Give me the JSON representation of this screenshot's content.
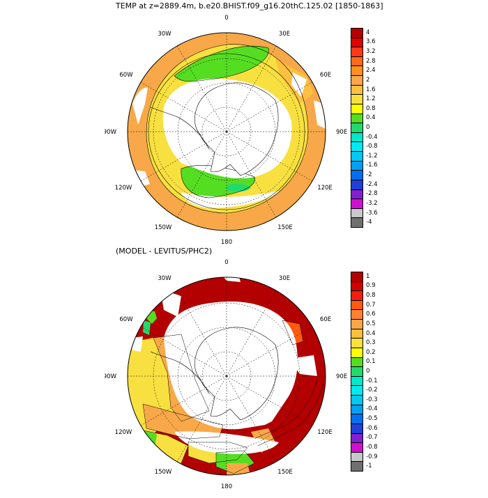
{
  "panel1": {
    "title": "TEMP at z=2889.4m, b.e20.BHIST.f09_g16.20thC.125.02 [1850-1863]",
    "longitude_labels": [
      "0",
      "30E",
      "60E",
      "90E",
      "120E",
      "150E",
      "180",
      "150W",
      "120W",
      "90W",
      "60W",
      "30W"
    ],
    "colorbar": {
      "labels": [
        "4",
        "3.6",
        "3.2",
        "2.8",
        "2.4",
        "2",
        "1.6",
        "1.2",
        "0.8",
        "0.4",
        "0",
        "-0.4",
        "-0.8",
        "-1.2",
        "-1.6",
        "-2",
        "-2.4",
        "-2.8",
        "-3.2",
        "-3.6",
        "-4"
      ],
      "colors": [
        "#b30000",
        "#e00000",
        "#ff3a1a",
        "#ff6a1a",
        "#ff9020",
        "#f8a848",
        "#fcc040",
        "#f8e040",
        "#ffff00",
        "#55dd22",
        "#22d96e",
        "#00e8c8",
        "#00e8f0",
        "#00c8f0",
        "#00a0f0",
        "#0070f0",
        "#2040d8",
        "#8020d0",
        "#d010d0",
        "#c8c8c8",
        "#707070"
      ]
    }
  },
  "panel2": {
    "title": "(MODEL - LEVITUS/PHC2)",
    "longitude_labels": [
      "0",
      "30E",
      "60E",
      "90E",
      "120E",
      "150E",
      "180",
      "150W",
      "120W",
      "90W",
      "60W",
      "30W"
    ],
    "colorbar": {
      "labels": [
        "1",
        "0.9",
        "0.8",
        "0.7",
        "0.6",
        "0.5",
        "0.4",
        "0.3",
        "0.2",
        "0.1",
        "0",
        "-0.1",
        "-0.2",
        "-0.3",
        "-0.4",
        "-0.5",
        "-0.6",
        "-0.7",
        "-0.8",
        "-0.9",
        "-1"
      ],
      "colors": [
        "#b30000",
        "#d00000",
        "#f02010",
        "#ff5a10",
        "#ff8030",
        "#f8a848",
        "#fcc040",
        "#f8e040",
        "#ffff00",
        "#55dd22",
        "#22d96e",
        "#00e8c8",
        "#00e8f0",
        "#00c8f0",
        "#00a0f0",
        "#0070f0",
        "#2040d8",
        "#8020d0",
        "#d010d0",
        "#c8c8c8",
        "#707070"
      ]
    }
  }
}
